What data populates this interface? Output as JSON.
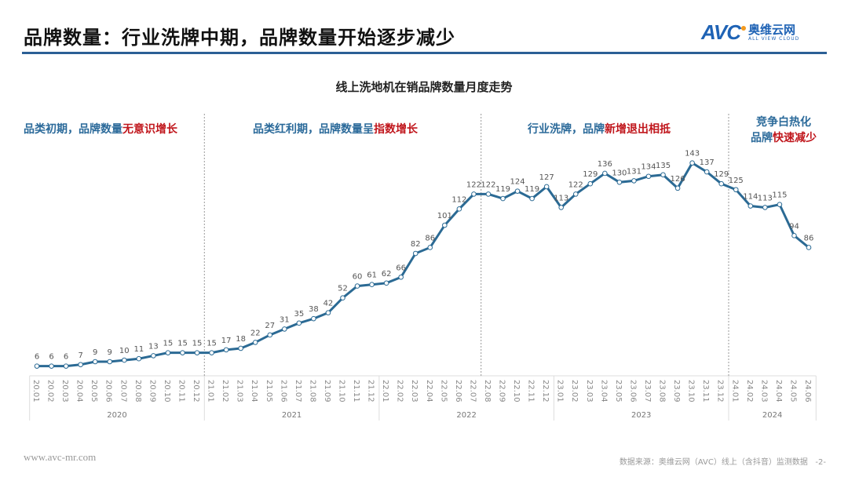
{
  "header": {
    "title": "品牌数量：行业洗牌中期，品牌数量开始逐步减少",
    "logo_text": "AVC",
    "logo_cn": "奥维云网",
    "logo_en": "ALL VIEW CLOUD"
  },
  "annotations": [
    {
      "blue": "品类初期，品牌数量",
      "red": "无意识增长"
    },
    {
      "blue": "品类红利期，品牌数量呈",
      "red": "指数增长"
    },
    {
      "blue": "行业洗牌，品牌",
      "red": "新增",
      "blue2": "退出相抵"
    },
    {
      "line1": "竞争白热化",
      "blue": "品牌",
      "red": "快速减少"
    }
  ],
  "footer": {
    "url": "www.avc-mr.com",
    "source": "数据来源：奥维云网（AVC）线上（含抖音）监测数据",
    "page": "-2-"
  },
  "colors": {
    "line": "#2b6a94",
    "accent": "#2b5f95",
    "red": "#c0161c"
  },
  "chart_data": {
    "type": "line",
    "title": "线上洗地机在销品牌数量月度走势",
    "x": [
      "20.01",
      "20.02",
      "20.03",
      "20.04",
      "20.05",
      "20.06",
      "20.07",
      "20.08",
      "20.09",
      "20.10",
      "20.11",
      "20.12",
      "21.01",
      "21.02",
      "21.03",
      "21.04",
      "21.05",
      "21.06",
      "21.07",
      "21.08",
      "21.09",
      "21.10",
      "21.11",
      "21.12",
      "22.01",
      "22.02",
      "22.03",
      "22.04",
      "22.05",
      "22.06",
      "22.07",
      "22.08",
      "22.09",
      "22.10",
      "22.11",
      "22.12",
      "23.01",
      "23.02",
      "23.03",
      "23.04",
      "23.05",
      "23.06",
      "23.07",
      "23.08",
      "23.09",
      "23.10",
      "23.11",
      "23.12",
      "24.01",
      "24.02",
      "24.03",
      "24.04",
      "24.05",
      "24.06"
    ],
    "values": [
      6,
      6,
      6,
      7,
      9,
      9,
      10,
      11,
      13,
      15,
      15,
      15,
      15,
      17,
      18,
      22,
      27,
      31,
      35,
      38,
      42,
      52,
      60,
      61,
      62,
      66,
      82,
      86,
      101,
      112,
      122,
      122,
      119,
      124,
      119,
      127,
      113,
      122,
      129,
      136,
      130,
      131,
      134,
      135,
      126,
      143,
      137,
      129,
      125,
      114,
      113,
      115,
      94,
      86
    ],
    "years": [
      {
        "label": "2020",
        "start": 0,
        "end": 11
      },
      {
        "label": "2021",
        "start": 12,
        "end": 23
      },
      {
        "label": "2022",
        "start": 24,
        "end": 35
      },
      {
        "label": "2023",
        "start": 36,
        "end": 47
      },
      {
        "label": "2024",
        "start": 48,
        "end": 53
      }
    ],
    "phase_breaks": [
      11.5,
      30.5,
      47.5
    ],
    "ylim": [
      0,
      150
    ],
    "xlabel": "",
    "ylabel": "",
    "grid": false
  }
}
